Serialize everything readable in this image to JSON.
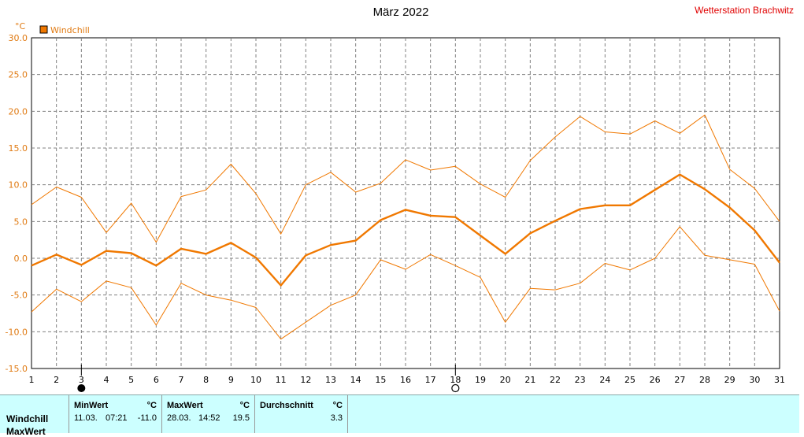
{
  "header": {
    "title": "März 2022",
    "station": "Wetterstation Brachwitz"
  },
  "legend": {
    "unit": "°C",
    "label": "Windchill",
    "color": "#f07800"
  },
  "moon_phases": {
    "new_moon_day": 3,
    "full_moon_day": 18
  },
  "chart_data": {
    "type": "line",
    "x": [
      1,
      2,
      3,
      4,
      5,
      6,
      7,
      8,
      9,
      10,
      11,
      12,
      13,
      14,
      15,
      16,
      17,
      18,
      19,
      20,
      21,
      22,
      23,
      24,
      25,
      26,
      27,
      28,
      29,
      30,
      31
    ],
    "xlim": [
      1,
      31
    ],
    "ylim": [
      -15,
      30
    ],
    "yticks": [
      "30.0",
      "25.0",
      "20.0",
      "15.0",
      "10.0",
      "5.0",
      "0.0",
      "-5.0",
      "-10.0",
      "-15.0"
    ],
    "ylabel": "°C",
    "grid": true,
    "legend_position": "top-left",
    "series": [
      {
        "name": "Windchill",
        "role": "max",
        "values": [
          7.3,
          9.7,
          8.3,
          3.5,
          7.5,
          2.2,
          8.4,
          9.3,
          12.8,
          8.8,
          3.3,
          10.0,
          11.7,
          9.0,
          10.2,
          13.4,
          12.0,
          12.5,
          10.1,
          8.3,
          13.3,
          16.5,
          19.3,
          17.2,
          16.9,
          18.7,
          17.0,
          19.5,
          12.1,
          9.5,
          5.0
        ]
      },
      {
        "name": "Windchill",
        "role": "mean",
        "values": [
          -1.0,
          0.5,
          -0.9,
          1.0,
          0.7,
          -1.0,
          1.3,
          0.6,
          2.1,
          0.1,
          -3.7,
          0.4,
          1.8,
          2.4,
          5.2,
          6.6,
          5.8,
          5.6,
          3.1,
          0.6,
          3.4,
          5.1,
          6.7,
          7.2,
          7.2,
          9.3,
          11.4,
          9.4,
          6.9,
          3.8,
          -0.6
        ]
      },
      {
        "name": "Windchill",
        "role": "min",
        "values": [
          -7.3,
          -4.2,
          -5.9,
          -3.1,
          -4.0,
          -9.1,
          -3.4,
          -5.0,
          -5.7,
          -6.7,
          -11.0,
          -8.7,
          -6.4,
          -5.0,
          -0.2,
          -1.5,
          0.5,
          -1.0,
          -2.6,
          -8.7,
          -4.1,
          -4.3,
          -3.4,
          -0.7,
          -1.6,
          0.0,
          4.3,
          0.4,
          -0.2,
          -0.8,
          -7.2
        ]
      }
    ]
  },
  "stats": {
    "rows": [
      {
        "label": "Windchill"
      },
      {
        "label": "MaxWert"
      }
    ],
    "min": {
      "header": "MinWert",
      "unit": "°C",
      "date": "11.03.",
      "time": "07:21",
      "value": "-11.0"
    },
    "max": {
      "header": "MaxWert",
      "unit": "°C",
      "date": "28.03.",
      "time": "14:52",
      "value": "19.5"
    },
    "avg": {
      "header": "Durchschnitt",
      "unit": "°C",
      "value": "3.3"
    }
  }
}
